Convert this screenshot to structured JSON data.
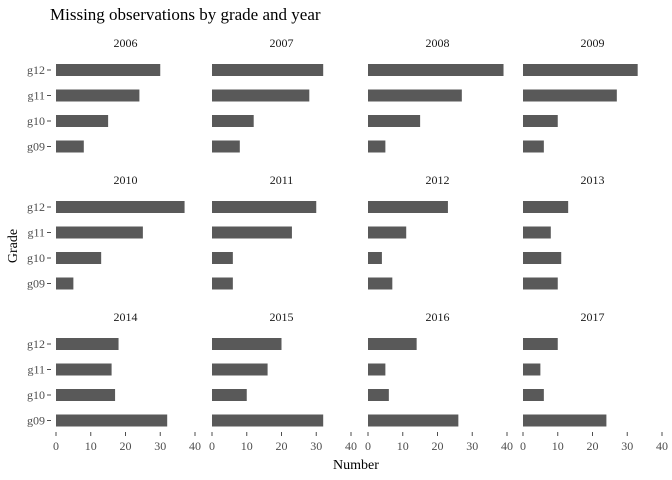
{
  "chart_data": {
    "type": "bar",
    "orientation": "horizontal",
    "title": "Missing observations by grade and year",
    "xlabel": "Number",
    "ylabel": "Grade",
    "xlim": [
      0,
      40
    ],
    "x_ticks": [
      0,
      10,
      20,
      30,
      40
    ],
    "categories": [
      "g09",
      "g10",
      "g11",
      "g12"
    ],
    "grid": false,
    "bar_color": "#595959",
    "panels": [
      {
        "year": "2006",
        "values": {
          "g12": 30,
          "g11": 24,
          "g10": 15,
          "g09": 8
        }
      },
      {
        "year": "2007",
        "values": {
          "g12": 32,
          "g11": 28,
          "g10": 12,
          "g09": 8
        }
      },
      {
        "year": "2008",
        "values": {
          "g12": 39,
          "g11": 27,
          "g10": 15,
          "g09": 5
        }
      },
      {
        "year": "2009",
        "values": {
          "g12": 33,
          "g11": 27,
          "g10": 10,
          "g09": 6
        }
      },
      {
        "year": "2010",
        "values": {
          "g12": 37,
          "g11": 25,
          "g10": 13,
          "g09": 5
        }
      },
      {
        "year": "2011",
        "values": {
          "g12": 30,
          "g11": 23,
          "g10": 6,
          "g09": 6
        }
      },
      {
        "year": "2012",
        "values": {
          "g12": 23,
          "g11": 11,
          "g10": 4,
          "g09": 7
        }
      },
      {
        "year": "2013",
        "values": {
          "g12": 13,
          "g11": 8,
          "g10": 11,
          "g09": 10
        }
      },
      {
        "year": "2014",
        "values": {
          "g12": 18,
          "g11": 16,
          "g10": 17,
          "g09": 32
        }
      },
      {
        "year": "2015",
        "values": {
          "g12": 20,
          "g11": 16,
          "g10": 10,
          "g09": 32
        }
      },
      {
        "year": "2016",
        "values": {
          "g12": 14,
          "g11": 5,
          "g10": 6,
          "g09": 26
        }
      },
      {
        "year": "2017",
        "values": {
          "g12": 10,
          "g11": 5,
          "g10": 6,
          "g09": 24
        }
      }
    ]
  }
}
